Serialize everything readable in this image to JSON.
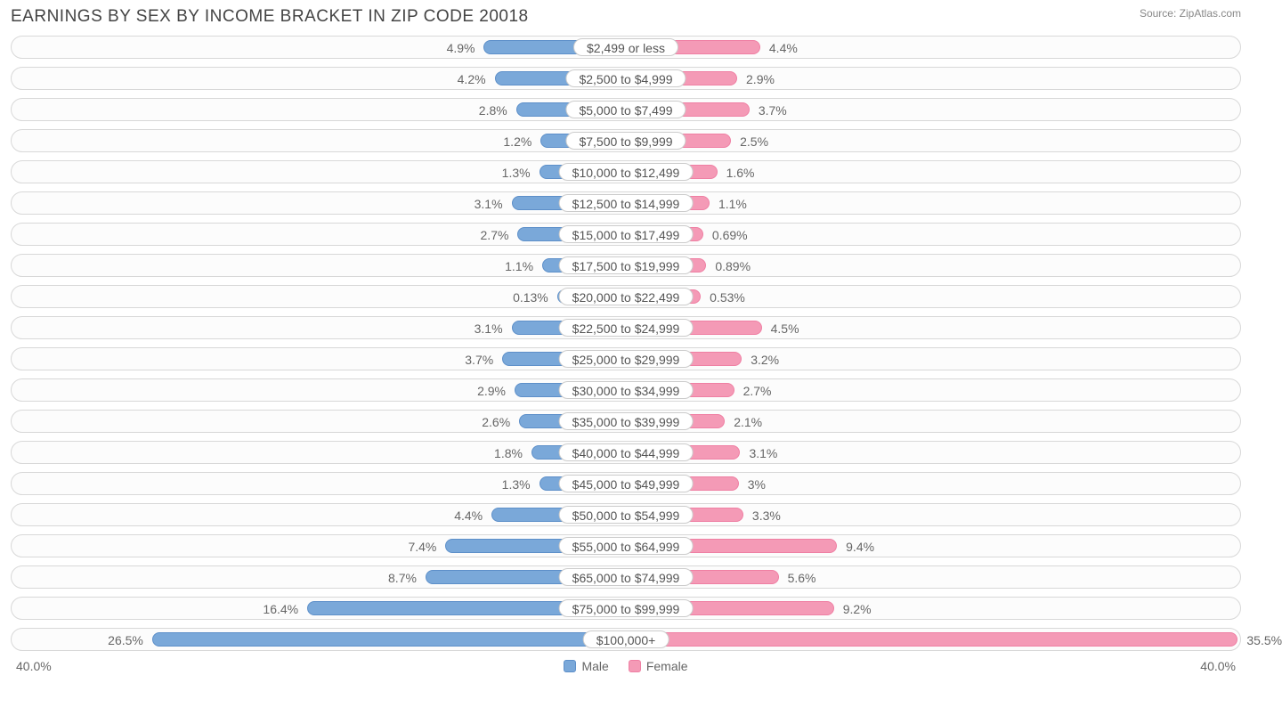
{
  "title": "EARNINGS BY SEX BY INCOME BRACKET IN ZIP CODE 20018",
  "source": "Source: ZipAtlas.com",
  "axis_max": 40.0,
  "axis_label_left": "40.0%",
  "axis_label_right": "40.0%",
  "colors": {
    "male_fill": "#7aa8d9",
    "male_border": "#5d8fc9",
    "female_fill": "#f49ab6",
    "female_border": "#ef7fa3",
    "track_border": "#d8d8d8",
    "track_bg": "#fcfcfc",
    "text": "#666666"
  },
  "legend": {
    "male": "Male",
    "female": "Female"
  },
  "rows": [
    {
      "label": "$2,499 or less",
      "male": 4.9,
      "female": 4.4
    },
    {
      "label": "$2,500 to $4,999",
      "male": 4.2,
      "female": 2.9
    },
    {
      "label": "$5,000 to $7,499",
      "male": 2.8,
      "female": 3.7
    },
    {
      "label": "$7,500 to $9,999",
      "male": 1.2,
      "female": 2.5
    },
    {
      "label": "$10,000 to $12,499",
      "male": 1.3,
      "female": 1.6
    },
    {
      "label": "$12,500 to $14,999",
      "male": 3.1,
      "female": 1.1
    },
    {
      "label": "$15,000 to $17,499",
      "male": 2.7,
      "female": 0.69
    },
    {
      "label": "$17,500 to $19,999",
      "male": 1.1,
      "female": 0.89
    },
    {
      "label": "$20,000 to $22,499",
      "male": 0.13,
      "female": 0.53
    },
    {
      "label": "$22,500 to $24,999",
      "male": 3.1,
      "female": 4.5
    },
    {
      "label": "$25,000 to $29,999",
      "male": 3.7,
      "female": 3.2
    },
    {
      "label": "$30,000 to $34,999",
      "male": 2.9,
      "female": 2.7
    },
    {
      "label": "$35,000 to $39,999",
      "male": 2.6,
      "female": 2.1
    },
    {
      "label": "$40,000 to $44,999",
      "male": 1.8,
      "female": 3.1
    },
    {
      "label": "$45,000 to $49,999",
      "male": 1.3,
      "female": 3.0
    },
    {
      "label": "$50,000 to $54,999",
      "male": 4.4,
      "female": 3.3
    },
    {
      "label": "$55,000 to $64,999",
      "male": 7.4,
      "female": 9.4
    },
    {
      "label": "$65,000 to $74,999",
      "male": 8.7,
      "female": 5.6
    },
    {
      "label": "$75,000 to $99,999",
      "male": 16.4,
      "female": 9.2
    },
    {
      "label": "$100,000+",
      "male": 26.5,
      "female": 35.5
    }
  ]
}
